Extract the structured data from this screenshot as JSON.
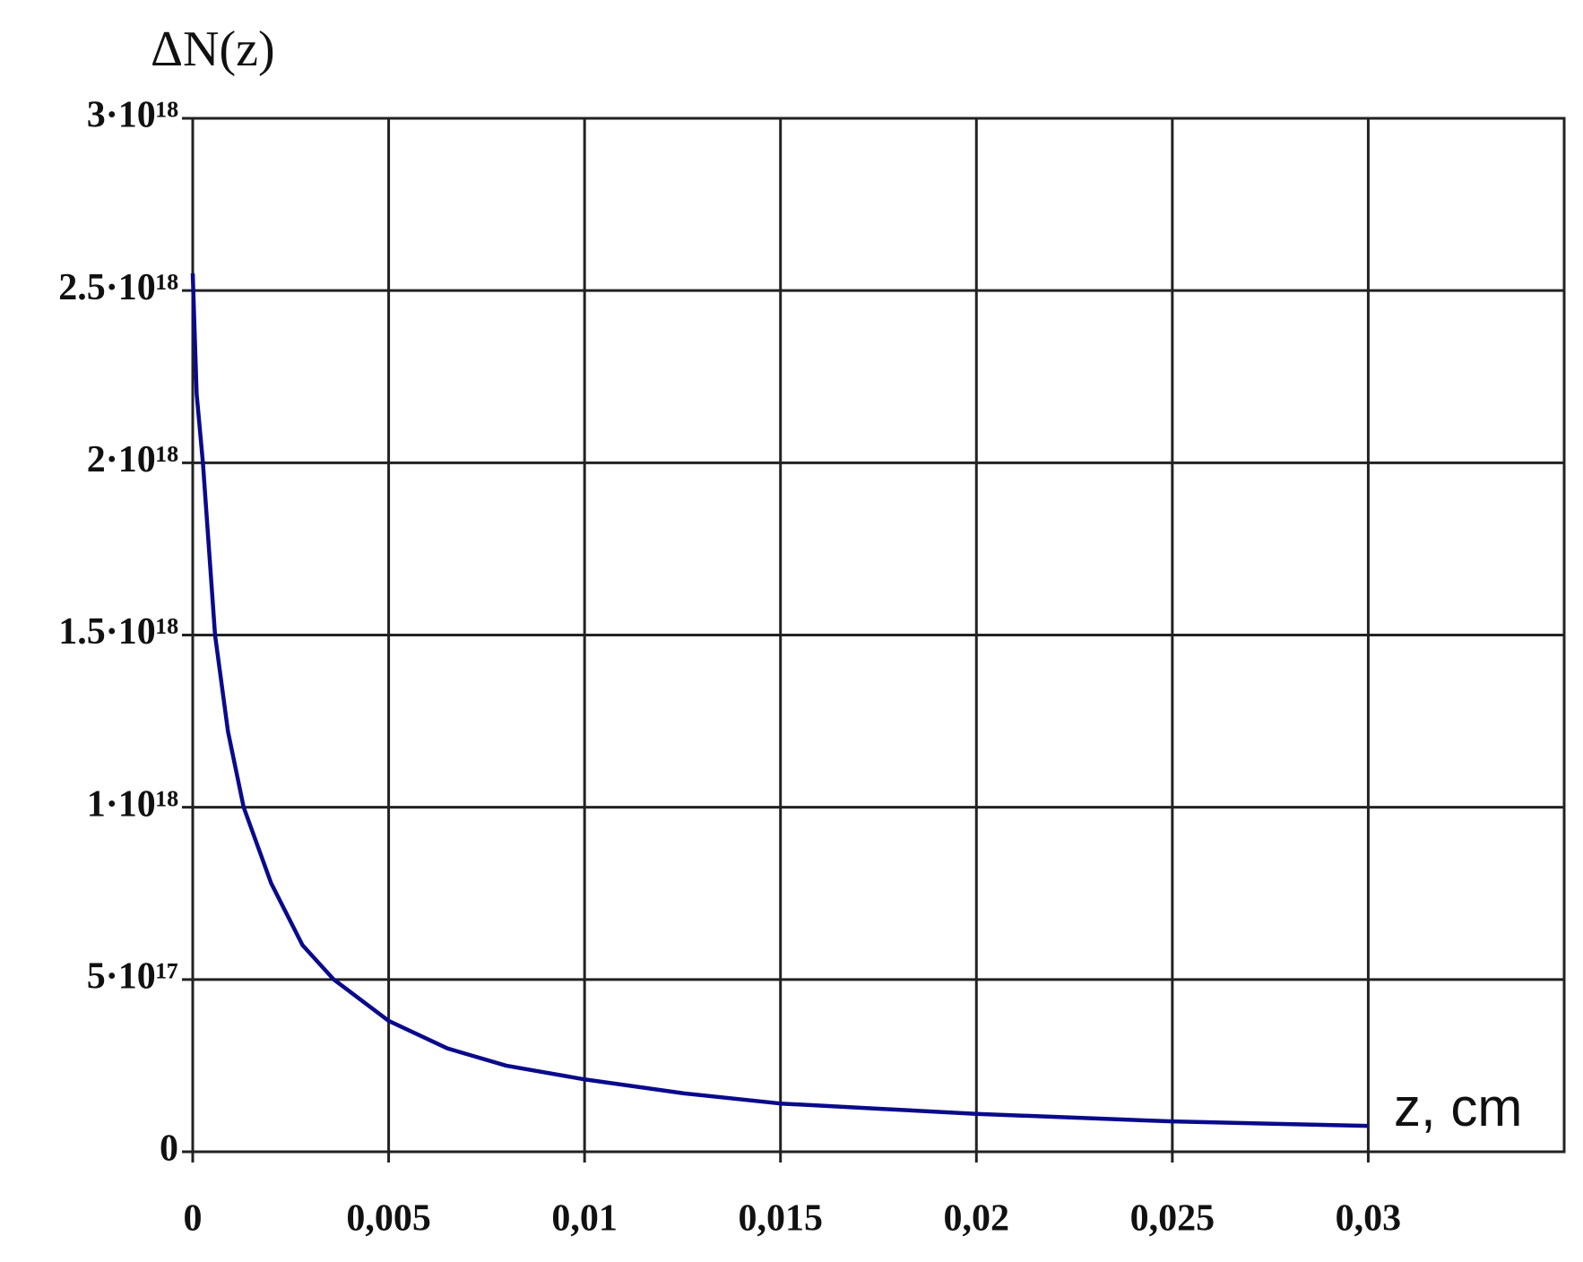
{
  "chart_data": {
    "type": "line",
    "y_label": "ΔN(z)",
    "x_label": "z, cm",
    "x": [
      0,
      0.0001,
      0.00026,
      0.00057,
      0.0009,
      0.0013,
      0.002,
      0.0028,
      0.0036,
      0.005,
      0.0065,
      0.008,
      0.01,
      0.0125,
      0.015,
      0.0175,
      0.02,
      0.025,
      0.03
    ],
    "series": [
      {
        "color": "#0a0a8c",
        "values": [
          2.55e+18,
          2.2e+18,
          2e+18,
          1.5e+18,
          1.22e+18,
          1e+18,
          7.8e+17,
          6e+17,
          5e+17,
          3.8e+17,
          3e+17,
          2.5e+17,
          2.1e+17,
          1.7e+17,
          1.4e+17,
          1.25e+17,
          1.1e+17,
          8.8e+16,
          7.5e+16
        ]
      }
    ],
    "xlim": [
      0,
      0.035
    ],
    "xticks": [
      0,
      {
        "value": 0.005,
        "label": "0,005"
      },
      {
        "value": 0.01,
        "label": "0,01"
      },
      {
        "value": 0.015,
        "label": "0,015"
      },
      {
        "value": 0.02,
        "label": "0,02"
      },
      {
        "value": 0.025,
        "label": "0,025"
      },
      {
        "value": 0.03,
        "label": "0,03"
      }
    ],
    "ylim": [
      0,
      3e+18
    ],
    "yticks": [
      0,
      {
        "value": 5e+17,
        "label": "5·10¹⁷"
      },
      {
        "value": 1e+18,
        "label": "1·10¹⁸"
      },
      {
        "value": 1.5e+18,
        "label": "1.5·10¹⁸"
      },
      {
        "value": 2e+18,
        "label": "2·10¹⁸"
      },
      {
        "value": 2.5e+18,
        "label": "2.5·10¹⁸"
      },
      {
        "value": 3e+18,
        "label": "3·10¹⁸"
      }
    ],
    "grid": true
  }
}
